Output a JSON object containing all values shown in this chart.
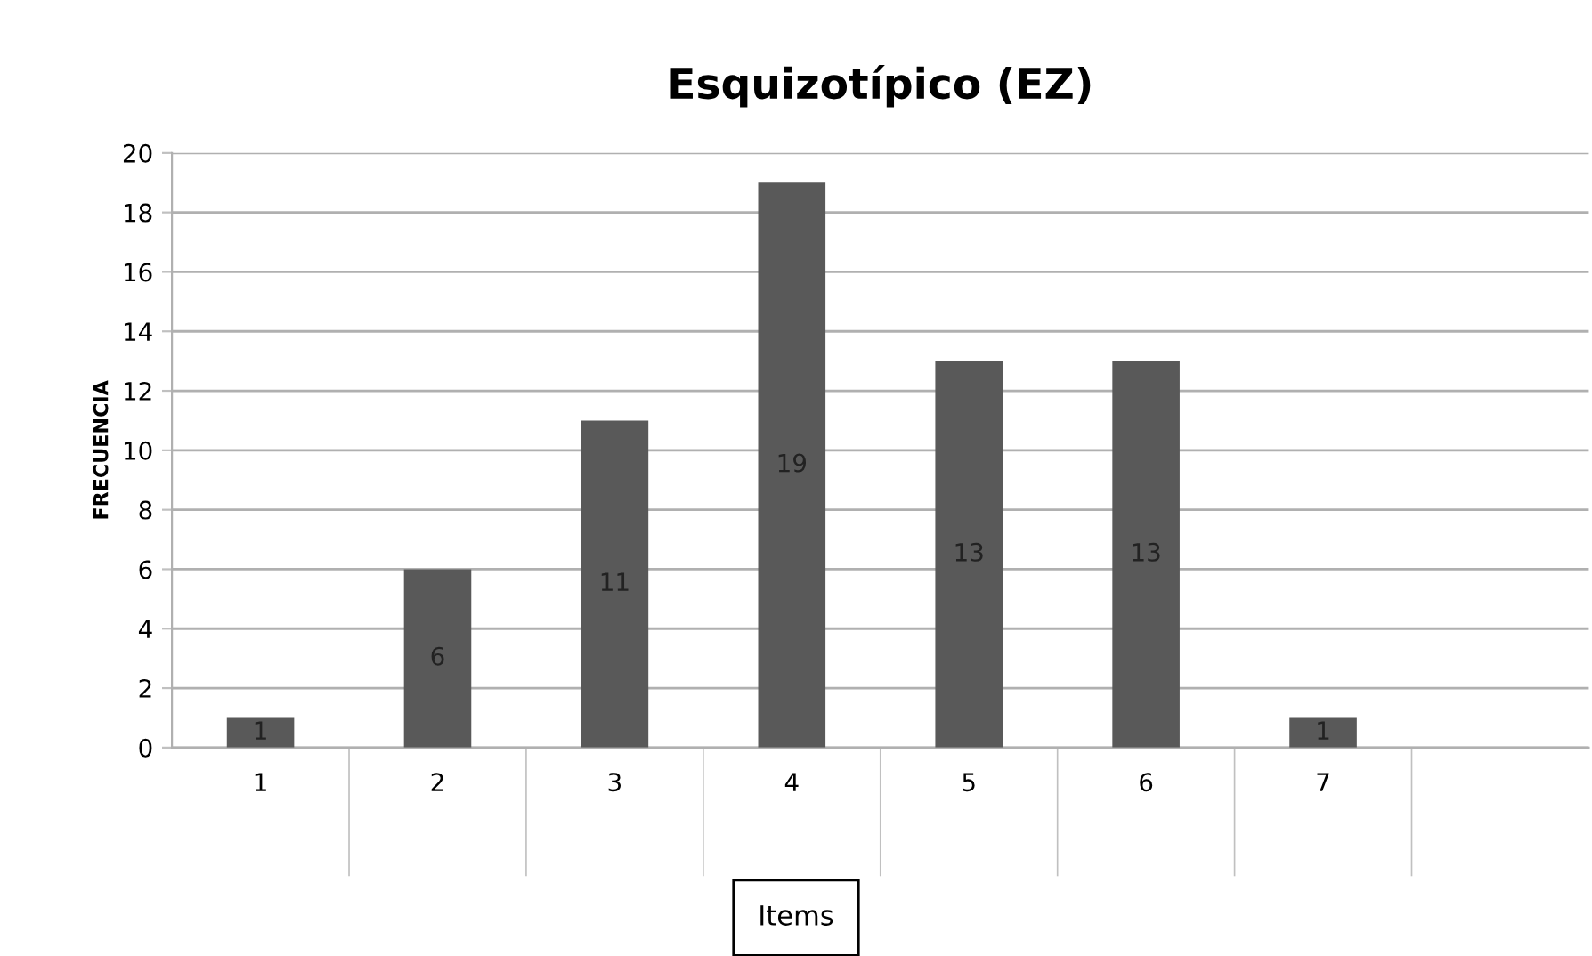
{
  "chart_data": {
    "type": "bar",
    "title": "Esquizotípico (EZ)",
    "ylabel": "FRECUENCIA",
    "xlabel": "Items",
    "categories": [
      "1",
      "2",
      "3",
      "4",
      "5",
      "6",
      "7",
      null
    ],
    "values": [
      1,
      6,
      11,
      19,
      13,
      13,
      1,
      null
    ],
    "color": "#595959",
    "ylim": [
      0,
      20
    ],
    "yticks": [
      0,
      2,
      4,
      6,
      8,
      10,
      12,
      14,
      16,
      18,
      20
    ],
    "grid": "y",
    "data_labels": true
  }
}
